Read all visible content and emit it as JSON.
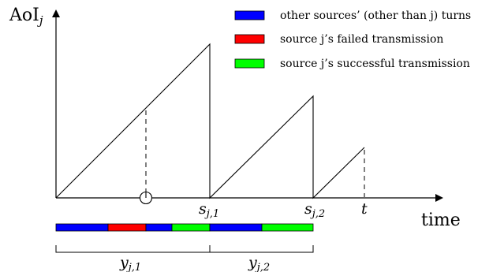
{
  "axes": {
    "y_label_base": "AoI",
    "y_label_sub": "j",
    "x_label": "time"
  },
  "ticks": [
    {
      "main": "s",
      "sub": "j,1"
    },
    {
      "main": "s",
      "sub": "j,2"
    },
    {
      "main": "t",
      "sub": ""
    }
  ],
  "legend": [
    {
      "label": "other sources’ (other than j) turns",
      "color": "#0000ff"
    },
    {
      "label": "source j’s failed transmission",
      "color": "#ff0000"
    },
    {
      "label": "source j’s successful transmission",
      "color": "#00ff00"
    }
  ],
  "timeline": {
    "segments": [
      {
        "kind": "other",
        "color": "#0000ff"
      },
      {
        "kind": "failed",
        "color": "#ff0000"
      },
      {
        "kind": "other",
        "color": "#0000ff"
      },
      {
        "kind": "success",
        "color": "#00ff00"
      },
      {
        "kind": "other",
        "color": "#0000ff"
      },
      {
        "kind": "success",
        "color": "#00ff00"
      }
    ]
  },
  "braces": [
    {
      "main": "y",
      "sub": "j,1"
    },
    {
      "main": "y",
      "sub": "j,2"
    }
  ]
}
